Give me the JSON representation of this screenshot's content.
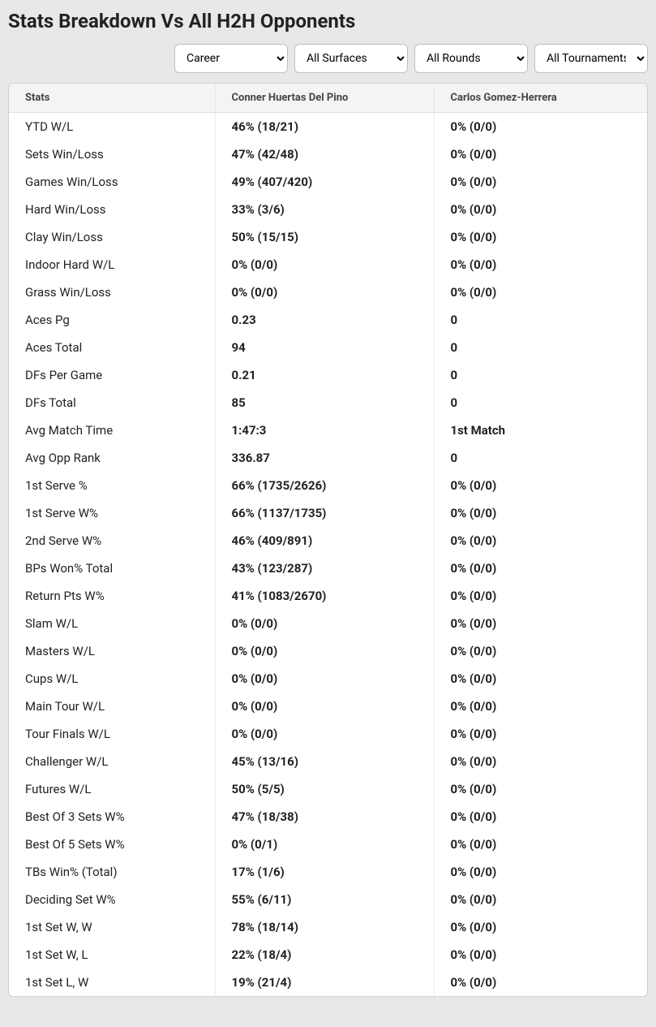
{
  "title": "Stats Breakdown Vs All H2H Opponents",
  "filters": {
    "period": {
      "selected": "Career",
      "options": [
        "Career"
      ]
    },
    "surface": {
      "selected": "All Surfaces",
      "options": [
        "All Surfaces"
      ]
    },
    "rounds": {
      "selected": "All Rounds",
      "options": [
        "All Rounds"
      ]
    },
    "tours": {
      "selected": "All Tournaments",
      "options": [
        "All Tournaments"
      ]
    }
  },
  "columns": {
    "stats": "Stats",
    "player1": "Conner Huertas Del Pino",
    "player2": "Carlos Gomez-Herrera"
  },
  "rows": [
    {
      "stat": "YTD W/L",
      "p1": "46% (18/21)",
      "p2": "0% (0/0)"
    },
    {
      "stat": "Sets Win/Loss",
      "p1": "47% (42/48)",
      "p2": "0% (0/0)"
    },
    {
      "stat": "Games Win/Loss",
      "p1": "49% (407/420)",
      "p2": "0% (0/0)"
    },
    {
      "stat": "Hard Win/Loss",
      "p1": "33% (3/6)",
      "p2": "0% (0/0)"
    },
    {
      "stat": "Clay Win/Loss",
      "p1": "50% (15/15)",
      "p2": "0% (0/0)"
    },
    {
      "stat": "Indoor Hard W/L",
      "p1": "0% (0/0)",
      "p2": "0% (0/0)"
    },
    {
      "stat": "Grass Win/Loss",
      "p1": "0% (0/0)",
      "p2": "0% (0/0)"
    },
    {
      "stat": "Aces Pg",
      "p1": "0.23",
      "p2": "0"
    },
    {
      "stat": "Aces Total",
      "p1": "94",
      "p2": "0"
    },
    {
      "stat": "DFs Per Game",
      "p1": "0.21",
      "p2": "0"
    },
    {
      "stat": "DFs Total",
      "p1": "85",
      "p2": "0"
    },
    {
      "stat": "Avg Match Time",
      "p1": "1:47:3",
      "p2": "1st Match"
    },
    {
      "stat": "Avg Opp Rank",
      "p1": "336.87",
      "p2": "0"
    },
    {
      "stat": "1st Serve %",
      "p1": "66% (1735/2626)",
      "p2": "0% (0/0)"
    },
    {
      "stat": "1st Serve W%",
      "p1": "66% (1137/1735)",
      "p2": "0% (0/0)"
    },
    {
      "stat": "2nd Serve W%",
      "p1": "46% (409/891)",
      "p2": "0% (0/0)"
    },
    {
      "stat": "BPs Won% Total",
      "p1": "43% (123/287)",
      "p2": "0% (0/0)"
    },
    {
      "stat": "Return Pts W%",
      "p1": "41% (1083/2670)",
      "p2": "0% (0/0)"
    },
    {
      "stat": "Slam W/L",
      "p1": "0% (0/0)",
      "p2": "0% (0/0)"
    },
    {
      "stat": "Masters W/L",
      "p1": "0% (0/0)",
      "p2": "0% (0/0)"
    },
    {
      "stat": "Cups W/L",
      "p1": "0% (0/0)",
      "p2": "0% (0/0)"
    },
    {
      "stat": "Main Tour W/L",
      "p1": "0% (0/0)",
      "p2": "0% (0/0)"
    },
    {
      "stat": "Tour Finals W/L",
      "p1": "0% (0/0)",
      "p2": "0% (0/0)"
    },
    {
      "stat": "Challenger W/L",
      "p1": "45% (13/16)",
      "p2": "0% (0/0)"
    },
    {
      "stat": "Futures W/L",
      "p1": "50% (5/5)",
      "p2": "0% (0/0)"
    },
    {
      "stat": "Best Of 3 Sets W%",
      "p1": "47% (18/38)",
      "p2": "0% (0/0)"
    },
    {
      "stat": "Best Of 5 Sets W%",
      "p1": "0% (0/1)",
      "p2": "0% (0/0)"
    },
    {
      "stat": "TBs Win% (Total)",
      "p1": "17% (1/6)",
      "p2": "0% (0/0)"
    },
    {
      "stat": "Deciding Set W%",
      "p1": "55% (6/11)",
      "p2": "0% (0/0)"
    },
    {
      "stat": "1st Set W, W",
      "p1": "78% (18/14)",
      "p2": "0% (0/0)"
    },
    {
      "stat": "1st Set W, L",
      "p1": "22% (18/4)",
      "p2": "0% (0/0)"
    },
    {
      "stat": "1st Set L, W",
      "p1": "19% (21/4)",
      "p2": "0% (0/0)"
    }
  ],
  "style": {
    "page_bg": "#e8e8e8",
    "table_bg": "#ffffff",
    "header_bg": "#f4f4f4",
    "border": "#d0d0d0",
    "row_border": "#eeeeee",
    "text": "#222222",
    "header_text": "#444444",
    "title_fontsize": 24,
    "header_fontsize": 13,
    "cell_fontsize": 15
  }
}
